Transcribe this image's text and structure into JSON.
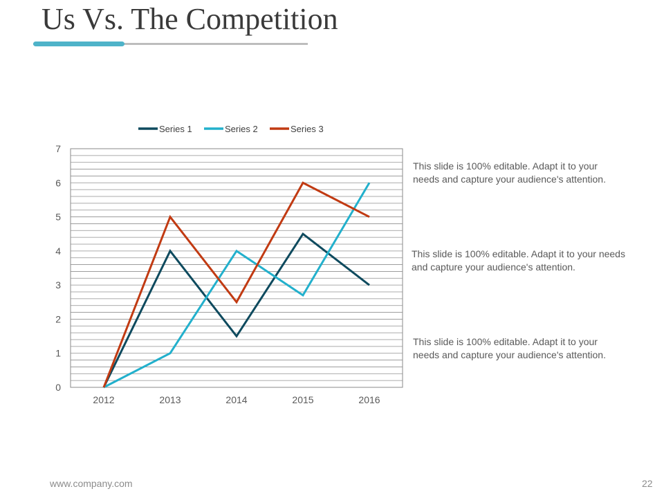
{
  "slide": {
    "title": "Us Vs. The Competition",
    "footer_url": "www.company.com",
    "page_number": "22",
    "accent_color": "#4eb3c9"
  },
  "descriptions": [
    "This slide is 100% editable. Adapt it to your needs and capture your audience's attention.",
    "This slide is 100% editable. Adapt it to your needs and capture your audience's attention.",
    "This slide is 100% editable. Adapt it to your needs and capture your audience's attention."
  ],
  "chart_data": {
    "type": "line",
    "categories": [
      "2012",
      "2013",
      "2014",
      "2015",
      "2016"
    ],
    "series": [
      {
        "name": "Series 1",
        "color": "#0e4a5e",
        "values": [
          0,
          4,
          1.5,
          4.5,
          3
        ]
      },
      {
        "name": "Series 2",
        "color": "#22b0cc",
        "values": [
          0,
          1,
          4,
          2.7,
          6
        ]
      },
      {
        "name": "Series 3",
        "color": "#c13a12",
        "values": [
          0,
          5,
          2.5,
          6,
          5
        ]
      }
    ],
    "ylim": [
      0,
      7
    ],
    "yticks": [
      "0",
      "1",
      "2",
      "3",
      "4",
      "5",
      "6",
      "7"
    ],
    "minor_gridlines_per_unit": 5,
    "legend": "top",
    "title": "",
    "xlabel": "",
    "ylabel": ""
  }
}
